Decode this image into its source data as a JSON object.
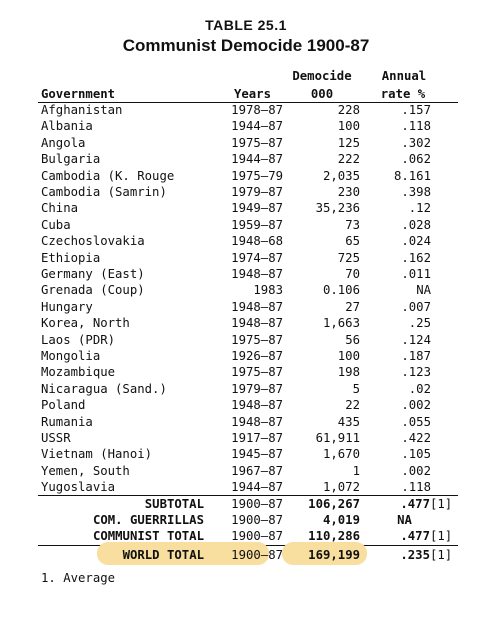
{
  "table": {
    "label": "TABLE 25.1",
    "title": "Communist Democide 1900-87",
    "headers": {
      "government": "Government",
      "years": "Years",
      "democide_line1": "Democide",
      "democide_line2": "000",
      "rate_line1": "Annual",
      "rate_line2": "rate %"
    },
    "rows": [
      {
        "government": "Afghanistan",
        "years": "1978–87",
        "democide": "228",
        "rate": ".157"
      },
      {
        "government": "Albania",
        "years": "1944–87",
        "democide": "100",
        "rate": ".118"
      },
      {
        "government": "Angola",
        "years": "1975–87",
        "democide": "125",
        "rate": ".302"
      },
      {
        "government": "Bulgaria",
        "years": "1944–87",
        "democide": "222",
        "rate": ".062"
      },
      {
        "government": "Cambodia (K. Rouge",
        "years": "1975–79",
        "democide": "2,035",
        "rate": "8.161"
      },
      {
        "government": "Cambodia (Samrin)",
        "years": "1979–87",
        "democide": "230",
        "rate": ".398"
      },
      {
        "government": "China",
        "years": "1949–87",
        "democide": "35,236",
        "rate": ".12"
      },
      {
        "government": "Cuba",
        "years": "1959–87",
        "democide": "73",
        "rate": ".028"
      },
      {
        "government": "Czechoslovakia",
        "years": "1948–68",
        "democide": "65",
        "rate": ".024"
      },
      {
        "government": "Ethiopia",
        "years": "1974–87",
        "democide": "725",
        "rate": ".162"
      },
      {
        "government": "Germany (East)",
        "years": "1948–87",
        "democide": "70",
        "rate": ".011"
      },
      {
        "government": "Grenada (Coup)",
        "years": "1983",
        "democide": "0.106",
        "rate": "NA"
      },
      {
        "government": "Hungary",
        "years": "1948–87",
        "democide": "27",
        "rate": ".007"
      },
      {
        "government": "Korea, North",
        "years": "1948–87",
        "democide": "1,663",
        "rate": ".25"
      },
      {
        "government": "Laos (PDR)",
        "years": "1975–87",
        "democide": "56",
        "rate": ".124"
      },
      {
        "government": "Mongolia",
        "years": "1926–87",
        "democide": "100",
        "rate": ".187"
      },
      {
        "government": "Mozambique",
        "years": "1975–87",
        "democide": "198",
        "rate": ".123"
      },
      {
        "government": "Nicaragua (Sand.)",
        "years": "1979–87",
        "democide": "5",
        "rate": ".02"
      },
      {
        "government": "Poland",
        "years": "1948–87",
        "democide": "22",
        "rate": ".002"
      },
      {
        "government": "Rumania",
        "years": "1948–87",
        "democide": "435",
        "rate": ".055"
      },
      {
        "government": "USSR",
        "years": "1917–87",
        "democide": "61,911",
        "rate": ".422"
      },
      {
        "government": "Vietnam (Hanoi)",
        "years": "1945–87",
        "democide": "1,670",
        "rate": ".105"
      },
      {
        "government": "Yemen, South",
        "years": "1967–87",
        "democide": "1",
        "rate": ".002"
      },
      {
        "government": "Yugoslavia",
        "years": "1944–87",
        "democide": "1,072",
        "rate": ".118"
      }
    ],
    "totals": [
      {
        "label": "SUBTOTAL",
        "years": "1900–87",
        "democide": "106,267",
        "rate": ".477",
        "note": "[1]"
      },
      {
        "label": "COM. GUERRILLAS",
        "years": "1900–87",
        "democide": "4,019",
        "rate": "NA",
        "note": ""
      },
      {
        "label": "COMMUNIST TOTAL",
        "years": "1900–87",
        "democide": "110,286",
        "rate": ".477",
        "note": "[1]"
      },
      {
        "label": "WORLD TOTAL",
        "years": "1900–87",
        "democide": "169,199",
        "rate": ".235",
        "note": "[1]"
      }
    ],
    "footnote": "1. Average",
    "highlight_color": "#f8df9f"
  }
}
